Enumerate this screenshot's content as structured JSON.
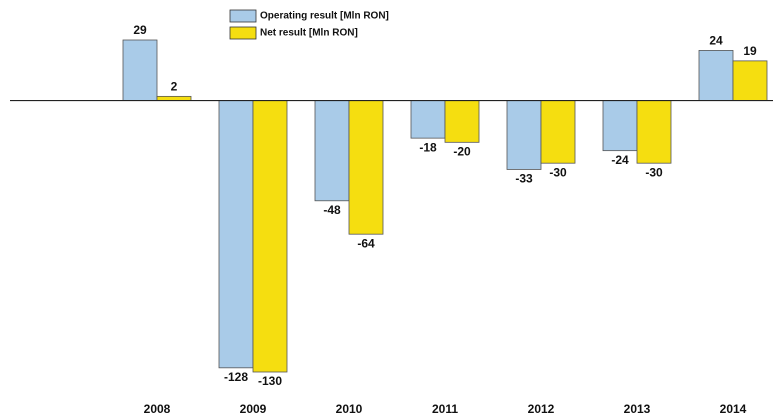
{
  "chart_data": {
    "type": "bar",
    "categories": [
      "2008",
      "2009",
      "2010",
      "2011",
      "2012",
      "2013",
      "2014"
    ],
    "series": [
      {
        "name": "Operating result [Mln RON]",
        "color": "#a9cbe8",
        "values": [
          29,
          -128,
          -48,
          -18,
          -33,
          -24,
          24
        ]
      },
      {
        "name": "Net result [Mln RON]",
        "color": "#f5de10",
        "values": [
          2,
          -130,
          -64,
          -20,
          -30,
          -30,
          19
        ]
      }
    ],
    "legend": "top"
  }
}
